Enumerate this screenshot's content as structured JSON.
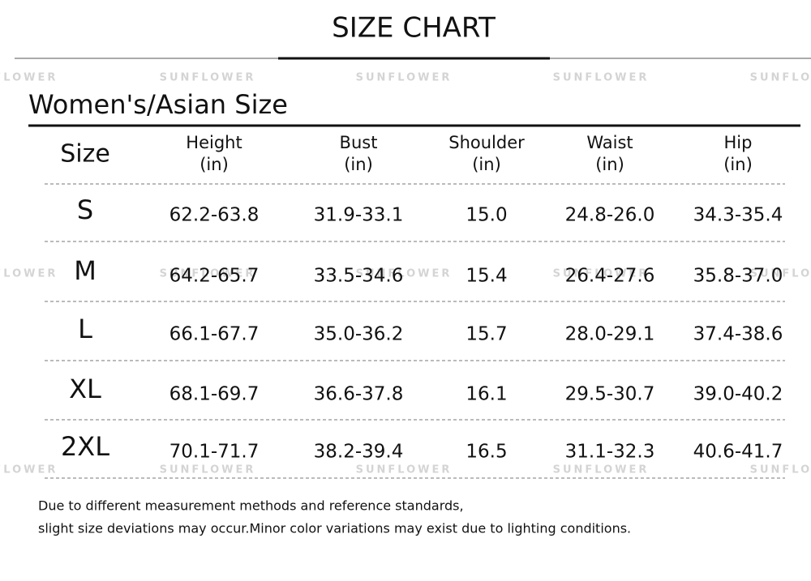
{
  "header": {
    "title": "SIZE CHART",
    "subtitle": "Women's/Asian Size"
  },
  "watermark": "SUNFLOWER",
  "table": {
    "columns": [
      {
        "name": "Size"
      },
      {
        "name": "Height",
        "unit": "(in)"
      },
      {
        "name": "Bust",
        "unit": "(in)"
      },
      {
        "name": "Shoulder",
        "unit": "(in)"
      },
      {
        "name": "Waist",
        "unit": "(in)"
      },
      {
        "name": "Hip",
        "unit": "(in)"
      }
    ],
    "rows": [
      [
        "S",
        "62.2-63.8",
        "31.9-33.1",
        "15.0",
        "24.8-26.0",
        "34.3-35.4"
      ],
      [
        "M",
        "64.2-65.7",
        "33.5-34.6",
        "15.4",
        "26.4-27.6",
        "35.8-37.0"
      ],
      [
        "L",
        "66.1-67.7",
        "35.0-36.2",
        "15.7",
        "28.0-29.1",
        "37.4-38.6"
      ],
      [
        "XL",
        "68.1-69.7",
        "36.6-37.8",
        "16.1",
        "29.5-30.7",
        "39.0-40.2"
      ],
      [
        "2XL",
        "70.1-71.7",
        "38.2-39.4",
        "16.5",
        "31.1-32.3",
        "40.6-41.7"
      ]
    ]
  },
  "notes": [
    "Due to different measurement methods and reference standards,",
    "slight size deviations may occur.Minor color variations may exist due to lighting conditions."
  ]
}
